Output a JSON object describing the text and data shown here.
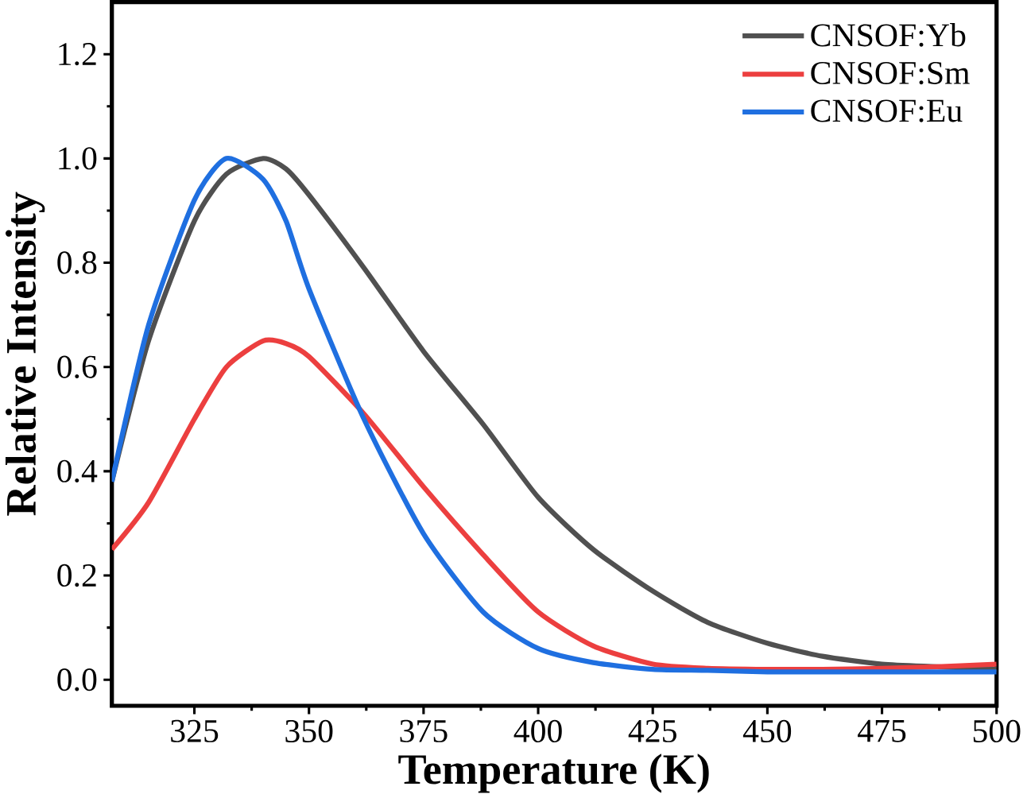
{
  "chart_data": {
    "type": "line",
    "xlabel": "Temperature (K)",
    "ylabel": "Relative Intensity",
    "xlim": [
      307,
      500
    ],
    "ylim": [
      -0.05,
      1.3
    ],
    "xticks": [
      325,
      350,
      375,
      400,
      425,
      450,
      475,
      500
    ],
    "yticks": [
      {
        "value": 0.0,
        "label": "0.0"
      },
      {
        "value": 0.2,
        "label": "0.2"
      },
      {
        "value": 0.4,
        "label": "0.4"
      },
      {
        "value": 0.6,
        "label": "0.6"
      },
      {
        "value": 0.8,
        "label": "0.8"
      },
      {
        "value": 1.0,
        "label": "1.0"
      },
      {
        "value": 1.2,
        "label": "1.2"
      }
    ],
    "legend": "top right",
    "grid": false,
    "marker": "none",
    "line_style": "solid",
    "x": [
      307,
      315,
      325,
      332,
      340,
      345,
      350,
      362,
      375,
      388,
      400,
      412,
      425,
      437,
      450,
      462,
      475,
      487,
      500
    ],
    "series": [
      {
        "name": "CNSOF:Yb",
        "color": "#505050",
        "values": [
          0.38,
          0.65,
          0.88,
          0.97,
          1.0,
          0.98,
          0.93,
          0.79,
          0.63,
          0.49,
          0.35,
          0.25,
          0.17,
          0.11,
          0.07,
          0.045,
          0.03,
          0.025,
          0.02
        ]
      },
      {
        "name": "CNSOF:Sm",
        "color": "#ec3f3f",
        "values": [
          0.25,
          0.34,
          0.5,
          0.6,
          0.65,
          0.645,
          0.62,
          0.51,
          0.37,
          0.24,
          0.13,
          0.065,
          0.03,
          0.022,
          0.02,
          0.02,
          0.022,
          0.025,
          0.03
        ]
      },
      {
        "name": "CNSOF:Eu",
        "color": "#1f6fe0",
        "values": [
          0.38,
          0.68,
          0.92,
          1.0,
          0.96,
          0.88,
          0.75,
          0.5,
          0.28,
          0.13,
          0.06,
          0.033,
          0.02,
          0.018,
          0.015,
          0.015,
          0.015,
          0.015,
          0.015
        ]
      }
    ]
  }
}
